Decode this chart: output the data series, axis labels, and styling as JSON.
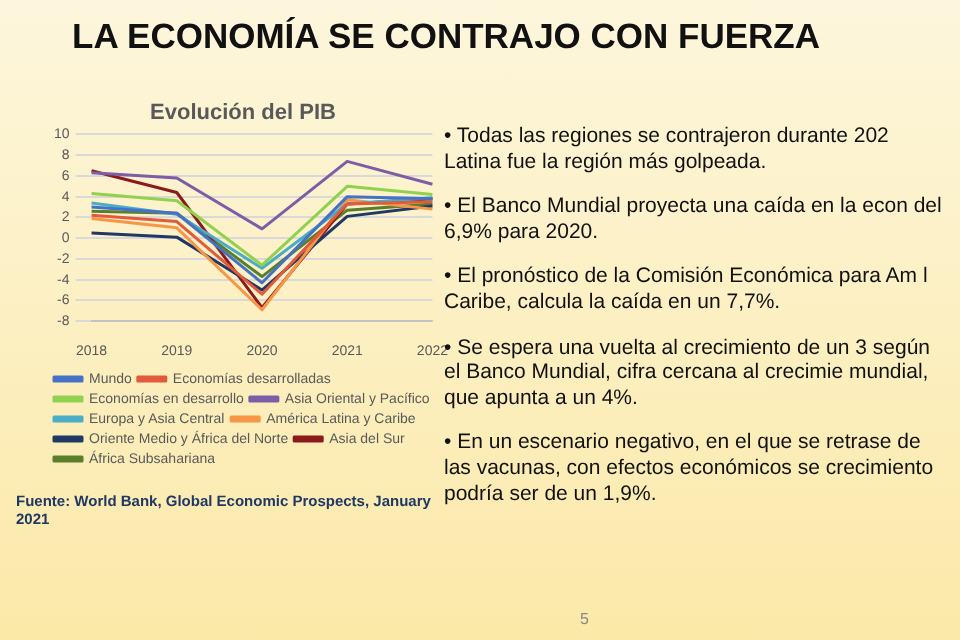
{
  "chart_data": {
    "type": "line",
    "title": "LA ECONOMÍA SE CONTRAJO CON FUERZA",
    "subtitle": "Evolución del PIB",
    "categories": [
      "2018",
      "2019",
      "2020",
      "2021",
      "2022"
    ],
    "series": [
      {
        "name": "Mundo",
        "color": "#4472c4",
        "values": [
          3.0,
          2.4,
          -4.3,
          4.0,
          3.8
        ]
      },
      {
        "name": "Economías desarrolladas",
        "color": "#e15b3a",
        "values": [
          2.2,
          1.6,
          -5.4,
          3.3,
          3.5
        ]
      },
      {
        "name": "Economías en desarrollo",
        "color": "#92d050",
        "values": [
          4.3,
          3.6,
          -2.6,
          5.0,
          4.2
        ]
      },
      {
        "name": "Asia Oriental y Pacífico",
        "color": "#7b5ea7",
        "values": [
          6.3,
          5.8,
          0.9,
          7.4,
          5.2
        ]
      },
      {
        "name": "Europa y Asia Central",
        "color": "#4bacc6",
        "values": [
          3.4,
          2.3,
          -2.9,
          3.3,
          3.9
        ]
      },
      {
        "name": "América Latina y Caribe",
        "color": "#f79646",
        "values": [
          1.9,
          1.0,
          -6.9,
          3.7,
          2.8
        ]
      },
      {
        "name": "Oriente Medio y África del Norte",
        "color": "#1f3864",
        "values": [
          0.5,
          0.1,
          -5.0,
          2.1,
          3.1
        ]
      },
      {
        "name": "Asia del Sur",
        "color": "#8b1a1a",
        "values": [
          6.5,
          4.4,
          -6.7,
          3.3,
          3.8
        ]
      },
      {
        "name": "África Subsahariana",
        "color": "#5a7f2a",
        "values": [
          2.6,
          2.4,
          -3.7,
          2.7,
          3.3
        ]
      }
    ],
    "ylim": [
      -8,
      10
    ],
    "yticks": [
      -8,
      -6,
      -4,
      -2,
      0,
      2,
      4,
      6,
      8,
      10
    ],
    "grid": "y",
    "legend": "bottom",
    "marker": "none",
    "line_style": "solid",
    "annotations": [
      "Fuente: World Bank, Global Economic Prospects, January 2021",
      "• Todas las regiones se contrajeron durante 202 Latina fue la región más golpeada.",
      "• El Banco Mundial proyecta una caída en la econ del 6,9% para 2020.",
      "• El pronóstico de la Comisión Económica para Am l Caribe, calcula la caída en un 7,7%.",
      "• Se espera una vuelta al crecimiento de un 3 según el Banco Mundial, cifra cercana al crecimie mundial, que apunta a un 4%.",
      "• En un escenario negativo, en el que se retrase de las vacunas, con efectos económicos se crecimiento podría ser de un 1,9%.",
      "5"
    ]
  }
}
